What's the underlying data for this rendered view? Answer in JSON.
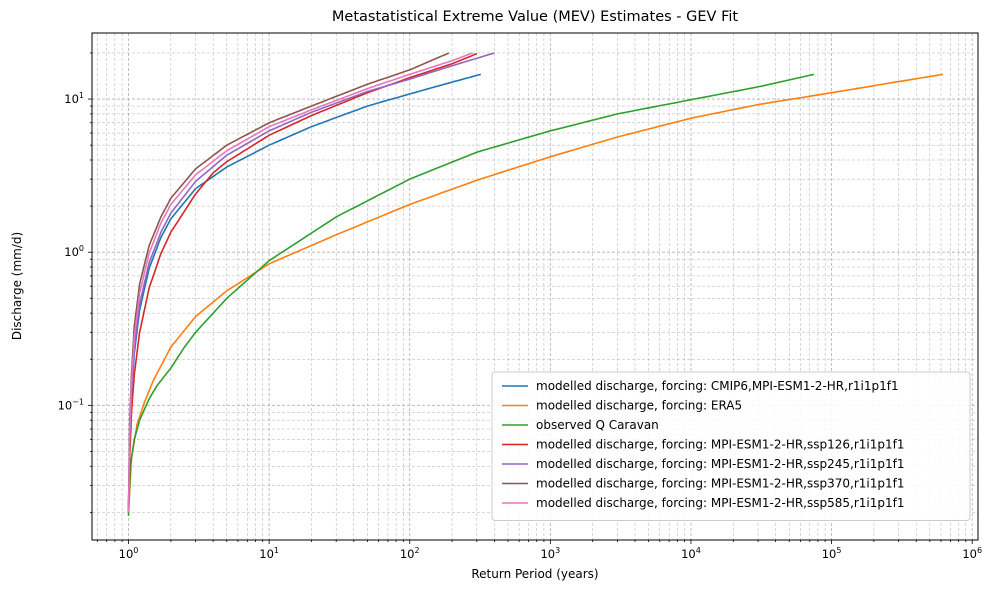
{
  "chart_data": {
    "type": "line",
    "title": "Metastatistical Extreme Value (MEV) Estimates - GEV Fit",
    "xlabel": "Return Period (years)",
    "ylabel": "Discharge (mm/d)",
    "xscale": "log",
    "yscale": "log",
    "xlim": [
      0.55,
      1100000
    ],
    "ylim": [
      0.0132,
      27
    ],
    "grid": true,
    "legend_position": "lower-right",
    "x_ticks": [
      {
        "value": 1,
        "base": "10",
        "exp": "0"
      },
      {
        "value": 10,
        "base": "10",
        "exp": "1"
      },
      {
        "value": 100,
        "base": "10",
        "exp": "2"
      },
      {
        "value": 1000,
        "base": "10",
        "exp": "3"
      },
      {
        "value": 10000,
        "base": "10",
        "exp": "4"
      },
      {
        "value": 100000,
        "base": "10",
        "exp": "5"
      },
      {
        "value": 1000000,
        "base": "10",
        "exp": "6"
      }
    ],
    "y_ticks": [
      {
        "value": 0.1,
        "base": "10",
        "exp": "−1"
      },
      {
        "value": 1,
        "base": "10",
        "exp": "0"
      },
      {
        "value": 10,
        "base": "10",
        "exp": "1"
      }
    ],
    "series": [
      {
        "name": "modelled discharge, forcing: CMIP6,MPI-ESM1-2-HR,r1i1p1f1",
        "color": "#1f77b4",
        "points": [
          [
            1,
            0.02
          ],
          [
            1.02,
            0.06
          ],
          [
            1.05,
            0.12
          ],
          [
            1.1,
            0.22
          ],
          [
            1.2,
            0.42
          ],
          [
            1.4,
            0.78
          ],
          [
            1.7,
            1.25
          ],
          [
            2,
            1.65
          ],
          [
            3,
            2.6
          ],
          [
            5,
            3.6
          ],
          [
            10,
            5.0
          ],
          [
            20,
            6.6
          ],
          [
            50,
            9.0
          ],
          [
            100,
            10.8
          ],
          [
            200,
            12.9
          ],
          [
            320,
            14.5
          ]
        ]
      },
      {
        "name": "modelled discharge, forcing: ERA5",
        "color": "#ff7f0e",
        "points": [
          [
            1,
            0.02
          ],
          [
            1.05,
            0.045
          ],
          [
            1.15,
            0.075
          ],
          [
            1.3,
            0.105
          ],
          [
            1.5,
            0.145
          ],
          [
            2,
            0.24
          ],
          [
            3,
            0.38
          ],
          [
            5,
            0.56
          ],
          [
            10,
            0.84
          ],
          [
            30,
            1.3
          ],
          [
            100,
            2.05
          ],
          [
            300,
            2.95
          ],
          [
            1000,
            4.2
          ],
          [
            3000,
            5.65
          ],
          [
            10000,
            7.5
          ],
          [
            30000,
            9.2
          ],
          [
            100000,
            11.0
          ],
          [
            300000,
            13.0
          ],
          [
            620000,
            14.5
          ]
        ]
      },
      {
        "name": "observed Q Caravan",
        "color": "#2ca02c",
        "points": [
          [
            1,
            0.019
          ],
          [
            1.03,
            0.04
          ],
          [
            1.1,
            0.06
          ],
          [
            1.2,
            0.08
          ],
          [
            1.4,
            0.11
          ],
          [
            1.6,
            0.135
          ],
          [
            2,
            0.175
          ],
          [
            2.5,
            0.24
          ],
          [
            3,
            0.3
          ],
          [
            5,
            0.5
          ],
          [
            10,
            0.88
          ],
          [
            30,
            1.7
          ],
          [
            100,
            3.0
          ],
          [
            300,
            4.5
          ],
          [
            1000,
            6.2
          ],
          [
            3000,
            8.0
          ],
          [
            10000,
            9.9
          ],
          [
            30000,
            12.0
          ],
          [
            75000,
            14.5
          ]
        ]
      },
      {
        "name": "modelled discharge, forcing: MPI-ESM1-2-HR,ssp126,r1i1p1f1",
        "color": "#d62728",
        "points": [
          [
            1,
            0.02
          ],
          [
            1.02,
            0.045
          ],
          [
            1.05,
            0.09
          ],
          [
            1.1,
            0.16
          ],
          [
            1.2,
            0.3
          ],
          [
            1.4,
            0.58
          ],
          [
            1.7,
            0.98
          ],
          [
            2,
            1.35
          ],
          [
            3,
            2.4
          ],
          [
            4,
            3.3
          ],
          [
            5,
            3.9
          ],
          [
            10,
            5.8
          ],
          [
            20,
            7.8
          ],
          [
            50,
            11.0
          ],
          [
            100,
            13.8
          ],
          [
            200,
            17.0
          ],
          [
            300,
            19.8
          ]
        ]
      },
      {
        "name": "modelled discharge, forcing: MPI-ESM1-2-HR,ssp245,r1i1p1f1",
        "color": "#9467bd",
        "points": [
          [
            1,
            0.02
          ],
          [
            1.02,
            0.06
          ],
          [
            1.05,
            0.12
          ],
          [
            1.1,
            0.24
          ],
          [
            1.2,
            0.46
          ],
          [
            1.4,
            0.85
          ],
          [
            1.7,
            1.35
          ],
          [
            2,
            1.8
          ],
          [
            3,
            2.9
          ],
          [
            5,
            4.3
          ],
          [
            10,
            6.2
          ],
          [
            20,
            8.2
          ],
          [
            50,
            11.2
          ],
          [
            100,
            13.5
          ],
          [
            200,
            16.5
          ],
          [
            400,
            20.0
          ]
        ]
      },
      {
        "name": "modelled discharge, forcing: MPI-ESM1-2-HR,ssp370,r1i1p1f1",
        "color": "#8c564b",
        "points": [
          [
            1,
            0.02
          ],
          [
            1.02,
            0.08
          ],
          [
            1.05,
            0.16
          ],
          [
            1.1,
            0.33
          ],
          [
            1.2,
            0.62
          ],
          [
            1.4,
            1.1
          ],
          [
            1.7,
            1.7
          ],
          [
            2,
            2.25
          ],
          [
            3,
            3.5
          ],
          [
            5,
            5.0
          ],
          [
            10,
            7.0
          ],
          [
            20,
            9.0
          ],
          [
            50,
            12.5
          ],
          [
            100,
            15.5
          ],
          [
            190,
            20.0
          ]
        ]
      },
      {
        "name": "modelled discharge, forcing: MPI-ESM1-2-HR,ssp585,r1i1p1f1",
        "color": "#e377c2",
        "points": [
          [
            1,
            0.02
          ],
          [
            1.02,
            0.07
          ],
          [
            1.05,
            0.14
          ],
          [
            1.1,
            0.28
          ],
          [
            1.2,
            0.54
          ],
          [
            1.4,
            0.98
          ],
          [
            1.7,
            1.55
          ],
          [
            2,
            2.05
          ],
          [
            3,
            3.2
          ],
          [
            5,
            4.6
          ],
          [
            10,
            6.6
          ],
          [
            20,
            8.5
          ],
          [
            50,
            11.7
          ],
          [
            100,
            14.5
          ],
          [
            200,
            17.8
          ],
          [
            280,
            20.0
          ]
        ]
      }
    ]
  }
}
